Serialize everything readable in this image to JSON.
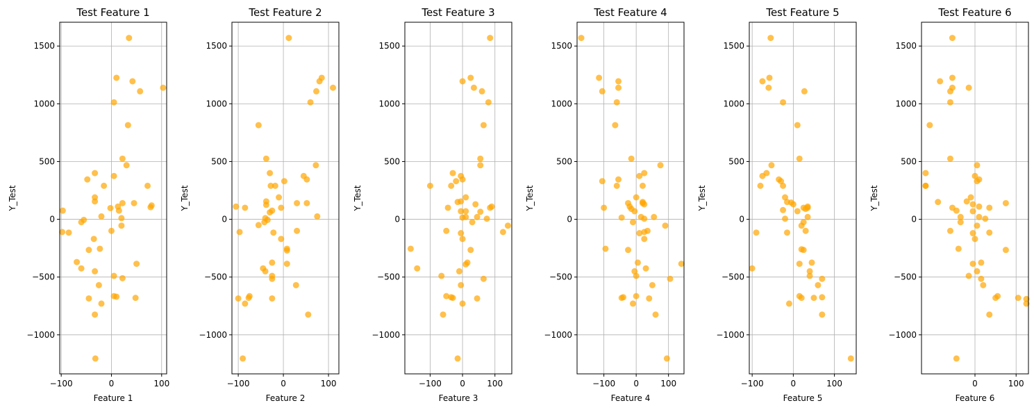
{
  "chart_data": [
    {
      "type": "scatter",
      "title": "Test Feature 1",
      "xlabel": "Feature 1",
      "ylabel": "Y_Test",
      "xlim": [
        -103,
        110
      ],
      "ylim": [
        -1338,
        1706
      ],
      "xticks": [
        -100,
        0,
        100
      ],
      "yticks": [
        -1000,
        -500,
        0,
        500,
        1000,
        1500
      ],
      "grid": true,
      "color": "#FFA500",
      "points": [
        [
          35,
          1570
        ],
        [
          10,
          1225
        ],
        [
          42,
          1195
        ],
        [
          57,
          1108
        ],
        [
          103,
          1139
        ],
        [
          5,
          1013
        ],
        [
          33,
          815
        ],
        [
          22,
          525
        ],
        [
          30,
          468
        ],
        [
          72,
          290
        ],
        [
          -33,
          400
        ],
        [
          -15,
          290
        ],
        [
          5,
          375
        ],
        [
          -48,
          345
        ],
        [
          -33,
          190
        ],
        [
          -33,
          155
        ],
        [
          45,
          140
        ],
        [
          22,
          140
        ],
        [
          -2,
          97
        ],
        [
          13,
          110
        ],
        [
          15,
          75
        ],
        [
          -97,
          75
        ],
        [
          80,
          120
        ],
        [
          78,
          105
        ],
        [
          -20,
          25
        ],
        [
          20,
          10
        ],
        [
          -55,
          -5
        ],
        [
          -60,
          -25
        ],
        [
          -85,
          -115
        ],
        [
          -98,
          -110
        ],
        [
          20,
          -55
        ],
        [
          0,
          -100
        ],
        [
          -23,
          -255
        ],
        [
          -45,
          -265
        ],
        [
          -35,
          -170
        ],
        [
          -69,
          -370
        ],
        [
          -60,
          -425
        ],
        [
          50,
          -385
        ],
        [
          -33,
          -450
        ],
        [
          5,
          -490
        ],
        [
          22,
          -510
        ],
        [
          -25,
          -570
        ],
        [
          -45,
          -685
        ],
        [
          5,
          -665
        ],
        [
          48,
          -680
        ],
        [
          -20,
          -730
        ],
        [
          10,
          -670
        ],
        [
          -33,
          -825
        ],
        [
          -32,
          -1205
        ]
      ]
    },
    {
      "type": "scatter",
      "title": "Test Feature 2",
      "xlabel": "Feature 2",
      "ylabel": "Y_Test",
      "xlim": [
        -114,
        123
      ],
      "ylim": [
        -1338,
        1706
      ],
      "xticks": [
        -100,
        0,
        100
      ],
      "yticks": [
        -1000,
        -500,
        0,
        500,
        1000,
        1500
      ],
      "grid": true,
      "color": "#FFA500",
      "points": [
        [
          12,
          1570
        ],
        [
          85,
          1225
        ],
        [
          80,
          1195
        ],
        [
          110,
          1139
        ],
        [
          73,
          1108
        ],
        [
          60,
          1013
        ],
        [
          -55,
          815
        ],
        [
          -38,
          525
        ],
        [
          72,
          468
        ],
        [
          -30,
          400
        ],
        [
          45,
          375
        ],
        [
          52,
          345
        ],
        [
          -28,
          290
        ],
        [
          -18,
          290
        ],
        [
          -10,
          190
        ],
        [
          -38,
          155
        ],
        [
          -38,
          125
        ],
        [
          30,
          140
        ],
        [
          52,
          140
        ],
        [
          -105,
          110
        ],
        [
          -85,
          100
        ],
        [
          -5,
          100
        ],
        [
          -25,
          75
        ],
        [
          -30,
          60
        ],
        [
          75,
          25
        ],
        [
          -40,
          10
        ],
        [
          -35,
          -5
        ],
        [
          -55,
          -50
        ],
        [
          -42,
          -25
        ],
        [
          2,
          330
        ],
        [
          30,
          -100
        ],
        [
          -22,
          -115
        ],
        [
          -97,
          -110
        ],
        [
          -5,
          -170
        ],
        [
          8,
          -255
        ],
        [
          8,
          -270
        ],
        [
          -25,
          -375
        ],
        [
          -45,
          -425
        ],
        [
          8,
          -385
        ],
        [
          -40,
          -450
        ],
        [
          -25,
          -490
        ],
        [
          -25,
          -515
        ],
        [
          28,
          -570
        ],
        [
          -100,
          -685
        ],
        [
          -75,
          -665
        ],
        [
          -77,
          -680
        ],
        [
          -85,
          -730
        ],
        [
          -25,
          -685
        ],
        [
          55,
          -825
        ],
        [
          -90,
          -1205
        ]
      ]
    },
    {
      "type": "scatter",
      "title": "Test Feature 3",
      "xlabel": "Feature 3",
      "ylabel": "Y_Test",
      "xlim": [
        -178,
        152
      ],
      "ylim": [
        -1338,
        1706
      ],
      "xticks": [
        -100,
        0,
        100
      ],
      "yticks": [
        -1000,
        -500,
        0,
        500,
        1000,
        1500
      ],
      "grid": true,
      "color": "#FFA500",
      "points": [
        [
          85,
          1570
        ],
        [
          25,
          1225
        ],
        [
          0,
          1195
        ],
        [
          35,
          1139
        ],
        [
          60,
          1108
        ],
        [
          80,
          1013
        ],
        [
          65,
          815
        ],
        [
          55,
          525
        ],
        [
          55,
          468
        ],
        [
          -30,
          400
        ],
        [
          -5,
          375
        ],
        [
          0,
          345
        ],
        [
          -20,
          330
        ],
        [
          -35,
          290
        ],
        [
          -100,
          290
        ],
        [
          10,
          190
        ],
        [
          -15,
          150
        ],
        [
          -5,
          155
        ],
        [
          40,
          130
        ],
        [
          -45,
          100
        ],
        [
          90,
          110
        ],
        [
          85,
          100
        ],
        [
          -5,
          70
        ],
        [
          10,
          70
        ],
        [
          55,
          65
        ],
        [
          10,
          20
        ],
        [
          0,
          15
        ],
        [
          45,
          20
        ],
        [
          30,
          -25
        ],
        [
          75,
          5
        ],
        [
          140,
          -55
        ],
        [
          125,
          -110
        ],
        [
          -5,
          -120
        ],
        [
          -50,
          -100
        ],
        [
          0,
          -170
        ],
        [
          25,
          -265
        ],
        [
          -160,
          -255
        ],
        [
          -140,
          -425
        ],
        [
          15,
          -375
        ],
        [
          10,
          -390
        ],
        [
          -10,
          -450
        ],
        [
          -65,
          -490
        ],
        [
          65,
          -515
        ],
        [
          -5,
          -570
        ],
        [
          -30,
          -680
        ],
        [
          -35,
          -675
        ],
        [
          -50,
          -665
        ],
        [
          45,
          -685
        ],
        [
          0,
          -730
        ],
        [
          -60,
          -825
        ],
        [
          -15,
          -1205
        ]
      ]
    },
    {
      "type": "scatter",
      "title": "Test Feature 4",
      "xlabel": "Feature 4",
      "ylabel": "Y_Test",
      "xlim": [
        -183,
        148
      ],
      "ylim": [
        -1338,
        1706
      ],
      "xticks": [
        -100,
        0,
        100
      ],
      "yticks": [
        -1000,
        -500,
        0,
        500,
        1000,
        1500
      ],
      "grid": true,
      "color": "#FFA500",
      "points": [
        [
          -170,
          1570
        ],
        [
          -115,
          1225
        ],
        [
          -55,
          1195
        ],
        [
          -55,
          1139
        ],
        [
          -105,
          1108
        ],
        [
          -60,
          1013
        ],
        [
          -65,
          815
        ],
        [
          -15,
          525
        ],
        [
          75,
          468
        ],
        [
          25,
          400
        ],
        [
          10,
          375
        ],
        [
          -55,
          345
        ],
        [
          -105,
          330
        ],
        [
          20,
          290
        ],
        [
          -60,
          290
        ],
        [
          0,
          190
        ],
        [
          20,
          140
        ],
        [
          20,
          150
        ],
        [
          -25,
          140
        ],
        [
          -20,
          110
        ],
        [
          -15,
          90
        ],
        [
          25,
          130
        ],
        [
          -100,
          100
        ],
        [
          -5,
          70
        ],
        [
          55,
          20
        ],
        [
          15,
          20
        ],
        [
          -45,
          15
        ],
        [
          25,
          5
        ],
        [
          -10,
          -25
        ],
        [
          90,
          -55
        ],
        [
          35,
          -100
        ],
        [
          25,
          -110
        ],
        [
          10,
          -120
        ],
        [
          25,
          -170
        ],
        [
          -25,
          -265
        ],
        [
          -95,
          -255
        ],
        [
          140,
          -385
        ],
        [
          30,
          -425
        ],
        [
          5,
          -375
        ],
        [
          -5,
          -450
        ],
        [
          0,
          -490
        ],
        [
          105,
          -515
        ],
        [
          50,
          -570
        ],
        [
          -45,
          -680
        ],
        [
          -40,
          -675
        ],
        [
          0,
          -665
        ],
        [
          40,
          -685
        ],
        [
          -10,
          -730
        ],
        [
          60,
          -825
        ],
        [
          95,
          -1205
        ]
      ]
    },
    {
      "type": "scatter",
      "title": "Test Feature 5",
      "xlabel": "Feature 5",
      "ylabel": "Y_Test",
      "xlim": [
        -107,
        153
      ],
      "ylim": [
        -1338,
        1706
      ],
      "xticks": [
        -100,
        0,
        100
      ],
      "yticks": [
        -1000,
        -500,
        0,
        500,
        1000,
        1500
      ],
      "grid": true,
      "color": "#FFA500",
      "points": [
        [
          -55,
          1570
        ],
        [
          -58,
          1225
        ],
        [
          -75,
          1195
        ],
        [
          -60,
          1139
        ],
        [
          27,
          1108
        ],
        [
          -25,
          1013
        ],
        [
          10,
          815
        ],
        [
          15,
          525
        ],
        [
          -53,
          468
        ],
        [
          -65,
          400
        ],
        [
          -75,
          375
        ],
        [
          -35,
          345
        ],
        [
          -30,
          330
        ],
        [
          -25,
          290
        ],
        [
          -80,
          290
        ],
        [
          -20,
          190
        ],
        [
          -15,
          150
        ],
        [
          -5,
          145
        ],
        [
          0,
          130
        ],
        [
          35,
          110
        ],
        [
          25,
          100
        ],
        [
          30,
          90
        ],
        [
          35,
          100
        ],
        [
          -25,
          80
        ],
        [
          10,
          70
        ],
        [
          35,
          20
        ],
        [
          -20,
          5
        ],
        [
          25,
          -25
        ],
        [
          20,
          -55
        ],
        [
          30,
          -100
        ],
        [
          -90,
          -115
        ],
        [
          -15,
          -115
        ],
        [
          20,
          -260
        ],
        [
          25,
          -265
        ],
        [
          -100,
          -425
        ],
        [
          15,
          -385
        ],
        [
          45,
          -375
        ],
        [
          40,
          -450
        ],
        [
          40,
          -490
        ],
        [
          70,
          -515
        ],
        [
          60,
          -570
        ],
        [
          20,
          -680
        ],
        [
          15,
          -665
        ],
        [
          50,
          -680
        ],
        [
          70,
          -675
        ],
        [
          -10,
          -730
        ],
        [
          70,
          -825
        ],
        [
          140,
          -1205
        ]
      ]
    },
    {
      "type": "scatter",
      "title": "Test Feature 6",
      "xlabel": "Feature 6",
      "ylabel": "Y_Test",
      "xlim": [
        -130,
        130
      ],
      "ylim": [
        -1338,
        1706
      ],
      "xticks": [
        0,
        100
      ],
      "yticks": [
        -1000,
        -500,
        0,
        500,
        1000,
        1500
      ],
      "grid": true,
      "color": "#FFA500",
      "points": [
        [
          -55,
          1570
        ],
        [
          -55,
          1225
        ],
        [
          -85,
          1195
        ],
        [
          -55,
          1139
        ],
        [
          -15,
          1139
        ],
        [
          -60,
          1108
        ],
        [
          -60,
          1013
        ],
        [
          -110,
          815
        ],
        [
          -60,
          525
        ],
        [
          5,
          468
        ],
        [
          -120,
          400
        ],
        [
          0,
          375
        ],
        [
          10,
          345
        ],
        [
          -10,
          190
        ],
        [
          -120,
          290
        ],
        [
          5,
          330
        ],
        [
          -20,
          155
        ],
        [
          -90,
          150
        ],
        [
          10,
          110
        ],
        [
          35,
          100
        ],
        [
          -55,
          100
        ],
        [
          -5,
          130
        ],
        [
          75,
          140
        ],
        [
          -45,
          75
        ],
        [
          -5,
          70
        ],
        [
          25,
          5
        ],
        [
          10,
          20
        ],
        [
          -35,
          20
        ],
        [
          -35,
          -25
        ],
        [
          5,
          -55
        ],
        [
          -60,
          -100
        ],
        [
          -5,
          -120
        ],
        [
          35,
          -115
        ],
        [
          0,
          -170
        ],
        [
          -40,
          -255
        ],
        [
          75,
          -265
        ],
        [
          -5,
          -385
        ],
        [
          15,
          -375
        ],
        [
          5,
          -450
        ],
        [
          -15,
          -490
        ],
        [
          15,
          -515
        ],
        [
          20,
          -570
        ],
        [
          55,
          -665
        ],
        [
          50,
          -680
        ],
        [
          105,
          -680
        ],
        [
          125,
          -690
        ],
        [
          125,
          -730
        ],
        [
          35,
          -825
        ],
        [
          -45,
          -1205
        ],
        [
          -120,
          290
        ]
      ]
    }
  ]
}
